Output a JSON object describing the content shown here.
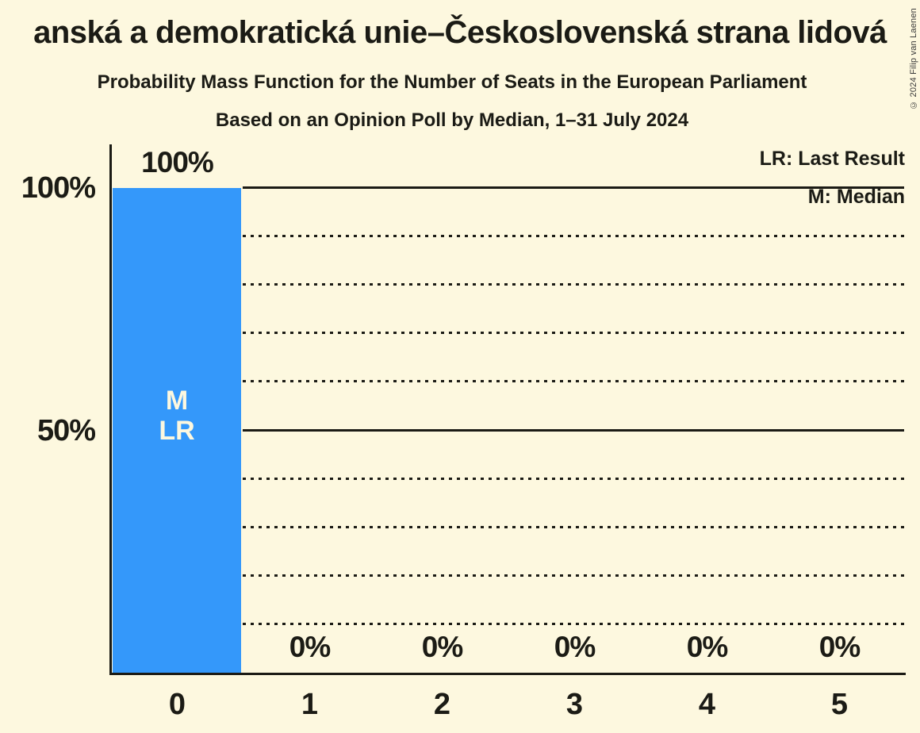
{
  "title": "anská a demokratická unie–Československá strana lidová",
  "subtitles": [
    "Probability Mass Function for the Number of Seats in the European Parliament",
    "Based on an Opinion Poll by Median, 1–31 July 2024"
  ],
  "copyright": "© 2024 Filip van Laenen",
  "legend": {
    "last_result": "LR: Last Result",
    "median": "M: Median"
  },
  "colors": {
    "background": "#FDF8DF",
    "bar": "#3498FA",
    "ink": "#1B1B15"
  },
  "chart_data": {
    "type": "bar",
    "title": "Probability Mass Function for the Number of Seats in the European Parliament",
    "categories": [
      "0",
      "1",
      "2",
      "3",
      "4",
      "5"
    ],
    "values": [
      100,
      0,
      0,
      0,
      0,
      0
    ],
    "value_labels": [
      "100%",
      "0%",
      "0%",
      "0%",
      "0%",
      "0%"
    ],
    "ylim": [
      0,
      100
    ],
    "y_axis_ticks": [
      {
        "value": 100,
        "label": "100%"
      },
      {
        "value": 50,
        "label": "50%"
      }
    ],
    "y_gridlines": {
      "solid": [
        100,
        50
      ],
      "dotted": [
        90,
        80,
        70,
        60,
        40,
        30,
        20,
        10
      ]
    },
    "grid": "horizontal-only",
    "legend_position": "top-right",
    "annotations": [
      {
        "category": "0",
        "labels": [
          "M",
          "LR"
        ]
      }
    ]
  }
}
